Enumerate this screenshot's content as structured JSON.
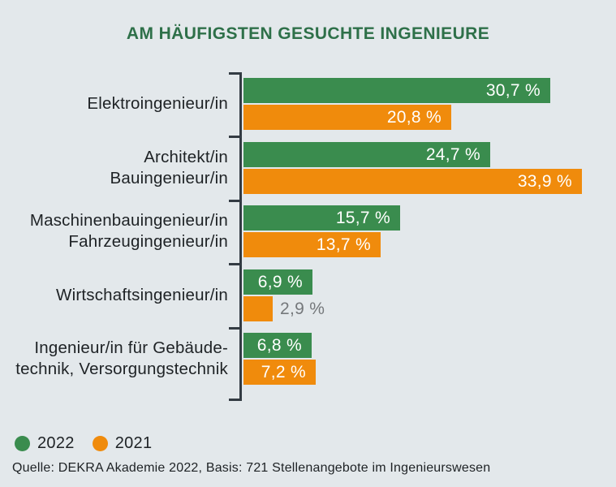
{
  "title": "AM HÄUFIGSTEN GESUCHTE INGENIEURE",
  "source_line": "Quelle: DEKRA Akademie 2022, Basis: 721 Stellenangebote im Ingenieurswesen",
  "colors": {
    "background": "#E3E8EB",
    "title": "#2E7049",
    "axis": "#333B43",
    "category_text": "#1E2225",
    "value_text_inside": "#FFFFFF",
    "value_text_outside": "#75787B",
    "series_2022": "#3A8C4E",
    "series_2021": "#F08B0C"
  },
  "legend": [
    {
      "label": "2022",
      "color": "#3A8C4E"
    },
    {
      "label": "2021",
      "color": "#F08B0C"
    }
  ],
  "chart_data": {
    "type": "bar",
    "orientation": "horizontal",
    "title": "AM HÄUFIGSTEN GESUCHTE INGENIEURE",
    "unit": "%",
    "xlim": [
      0,
      34
    ],
    "grid": false,
    "legend_position": "bottom-left",
    "categories": [
      "Elektroingenieur/in",
      "Architekt/in Bauingenieur/in",
      "Maschinenbauingenieur/in Fahrzeugingenieur/in",
      "Wirtschaftsingenieur/in",
      "Ingenieur/in für Gebäudetechnik, Versorgungstechnik"
    ],
    "series": [
      {
        "name": "2022",
        "color": "#3A8C4E",
        "values": [
          30.7,
          24.7,
          15.7,
          6.9,
          6.8
        ]
      },
      {
        "name": "2021",
        "color": "#F08B0C",
        "values": [
          20.8,
          33.9,
          13.7,
          2.9,
          7.2
        ]
      }
    ],
    "groups": [
      {
        "label_lines": [
          "Elektroingenieur/in"
        ],
        "bars": [
          {
            "series": "2022",
            "value": 30.7,
            "label": "30,7 %",
            "label_inside": true
          },
          {
            "series": "2021",
            "value": 20.8,
            "label": "20,8 %",
            "label_inside": true
          }
        ]
      },
      {
        "label_lines": [
          "Architekt/in",
          "Bauingenieur/in"
        ],
        "bars": [
          {
            "series": "2022",
            "value": 24.7,
            "label": "24,7 %",
            "label_inside": true
          },
          {
            "series": "2021",
            "value": 33.9,
            "label": "33,9 %",
            "label_inside": true
          }
        ]
      },
      {
        "label_lines": [
          "Maschinenbauingenieur/in",
          "Fahrzeugingenieur/in"
        ],
        "bars": [
          {
            "series": "2022",
            "value": 15.7,
            "label": "15,7 %",
            "label_inside": true
          },
          {
            "series": "2021",
            "value": 13.7,
            "label": "13,7 %",
            "label_inside": true
          }
        ]
      },
      {
        "label_lines": [
          "Wirtschaftsingenieur/in"
        ],
        "bars": [
          {
            "series": "2022",
            "value": 6.9,
            "label": "6,9 %",
            "label_inside": true
          },
          {
            "series": "2021",
            "value": 2.9,
            "label": "2,9 %",
            "label_inside": false
          }
        ]
      },
      {
        "label_lines": [
          "Ingenieur/in für Gebäude-",
          "technik, Versorgungstechnik"
        ],
        "bars": [
          {
            "series": "2022",
            "value": 6.8,
            "label": "6,8 %",
            "label_inside": true
          },
          {
            "series": "2021",
            "value": 7.2,
            "label": "7,2 %",
            "label_inside": true
          }
        ]
      }
    ]
  }
}
